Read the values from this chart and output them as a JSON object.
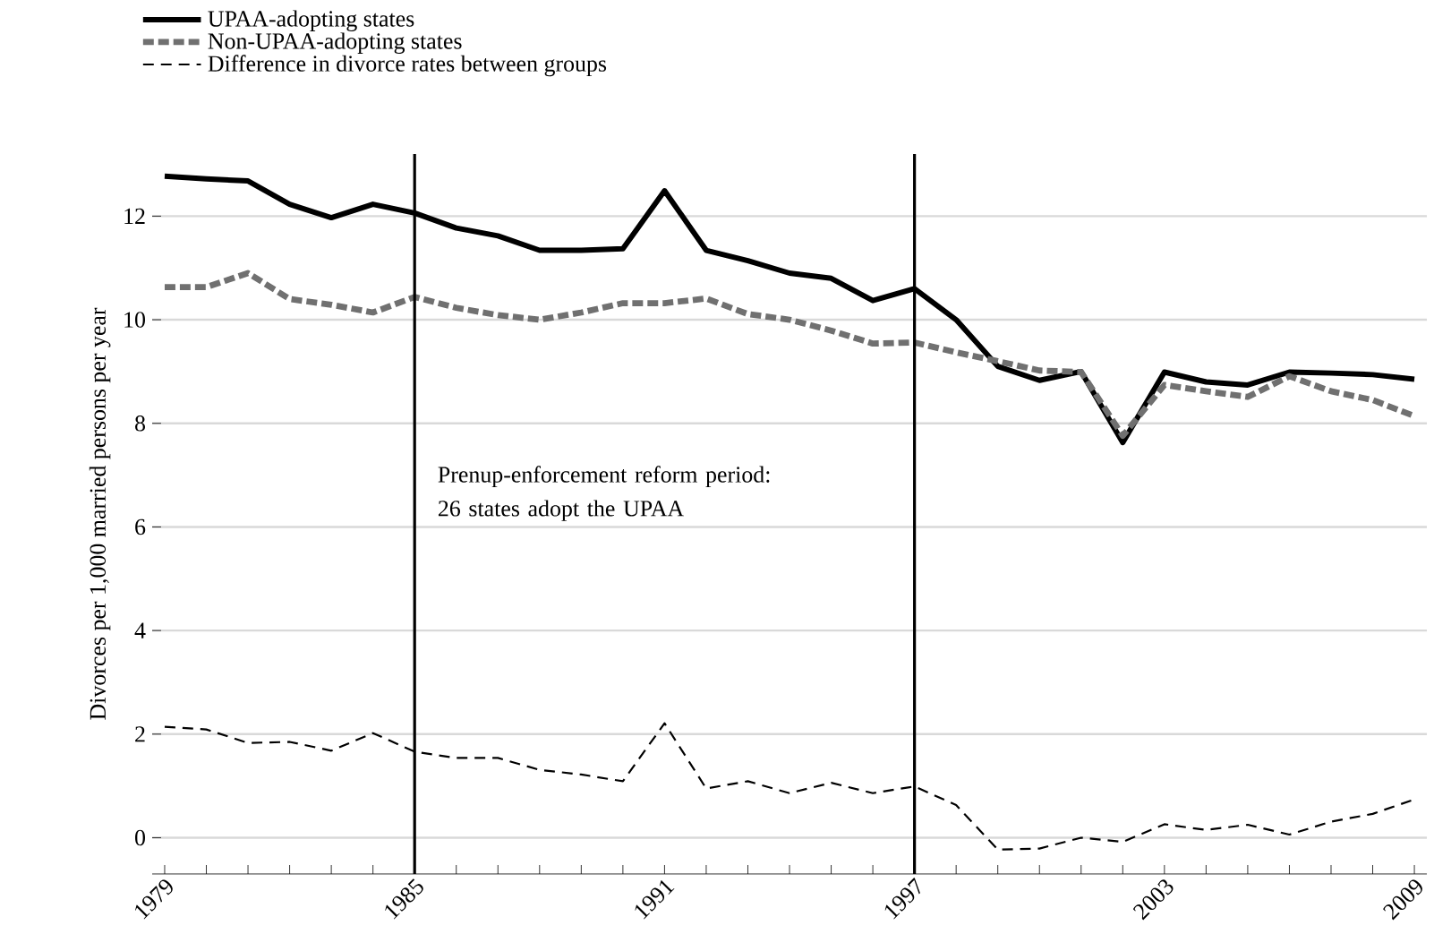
{
  "chart_data": {
    "type": "line",
    "ylabel": "Divorces per 1,000 married persons per year",
    "x": [
      1979,
      1980,
      1981,
      1982,
      1983,
      1984,
      1985,
      1986,
      1987,
      1988,
      1989,
      1990,
      1991,
      1992,
      1993,
      1994,
      1995,
      1996,
      1997,
      1998,
      1999,
      2000,
      2001,
      2002,
      2003,
      2004,
      2005,
      2006,
      2007,
      2008,
      2009
    ],
    "series": [
      {
        "name": "UPAA-adopting states",
        "color": "#000000",
        "line_style": "solid",
        "values": [
          12.77,
          12.72,
          12.68,
          12.23,
          11.97,
          12.23,
          12.06,
          11.77,
          11.62,
          11.34,
          11.34,
          11.37,
          12.49,
          11.34,
          11.14,
          10.9,
          10.8,
          10.37,
          10.6,
          10.0,
          9.1,
          8.83,
          9.0,
          7.63,
          8.99,
          8.8,
          8.74,
          8.99,
          8.97,
          8.94,
          8.85
        ]
      },
      {
        "name": "Non-UPAA-adopting states",
        "color": "#707070",
        "line_style": "dashed",
        "values": [
          10.63,
          10.63,
          10.9,
          10.4,
          10.29,
          10.14,
          10.44,
          10.23,
          10.09,
          10.0,
          10.14,
          10.32,
          10.32,
          10.41,
          10.11,
          10.0,
          9.79,
          9.54,
          9.56,
          9.37,
          9.2,
          9.02,
          8.99,
          7.76,
          8.74,
          8.62,
          8.51,
          8.91,
          8.62,
          8.45,
          8.14
        ]
      },
      {
        "name": "Difference in divorce rates between groups",
        "color": "#000000",
        "line_style": "dashed",
        "values": [
          2.14,
          2.09,
          1.83,
          1.85,
          1.68,
          2.02,
          1.66,
          1.54,
          1.54,
          1.31,
          1.22,
          1.09,
          2.21,
          0.95,
          1.09,
          0.86,
          1.06,
          0.86,
          0.99,
          0.63,
          -0.23,
          -0.21,
          0.0,
          -0.08,
          0.26,
          0.15,
          0.25,
          0.06,
          0.31,
          0.46,
          0.74
        ]
      }
    ],
    "xlim": [
      1978.7,
      2009.3
    ],
    "xticks": [
      1979,
      {
        "value": 1980,
        "label": null
      },
      {
        "value": 1981,
        "label": null
      },
      {
        "value": 1982,
        "label": null
      },
      {
        "value": 1983,
        "label": null
      },
      {
        "value": 1984,
        "label": null
      },
      1985,
      {
        "value": 1986,
        "label": null
      },
      {
        "value": 1987,
        "label": null
      },
      {
        "value": 1988,
        "label": null
      },
      {
        "value": 1989,
        "label": null
      },
      {
        "value": 1990,
        "label": null
      },
      1991,
      {
        "value": 1992,
        "label": null
      },
      {
        "value": 1993,
        "label": null
      },
      {
        "value": 1994,
        "label": null
      },
      {
        "value": 1995,
        "label": null
      },
      {
        "value": 1996,
        "label": null
      },
      1997,
      {
        "value": 1998,
        "label": null
      },
      {
        "value": 1999,
        "label": null
      },
      {
        "value": 2000,
        "label": null
      },
      {
        "value": 2001,
        "label": null
      },
      {
        "value": 2002,
        "label": null
      },
      2003,
      {
        "value": 2004,
        "label": null
      },
      {
        "value": 2005,
        "label": null
      },
      {
        "value": 2006,
        "label": null
      },
      {
        "value": 2007,
        "label": null
      },
      {
        "value": 2008,
        "label": null
      },
      2009
    ],
    "ylim": [
      -0.7,
      13.2
    ],
    "yticks": [
      0,
      2,
      4,
      6,
      8,
      10,
      12
    ],
    "grid": "y",
    "legend": "top left",
    "marker": "none",
    "ref_lines": [
      {
        "axis": "x",
        "value": 1985,
        "color": "#000000"
      },
      {
        "axis": "x",
        "value": 1997,
        "color": "#000000"
      }
    ],
    "annotations": [
      "Prenup-enforcement reform period: 26 states adopt the UPAA"
    ]
  }
}
